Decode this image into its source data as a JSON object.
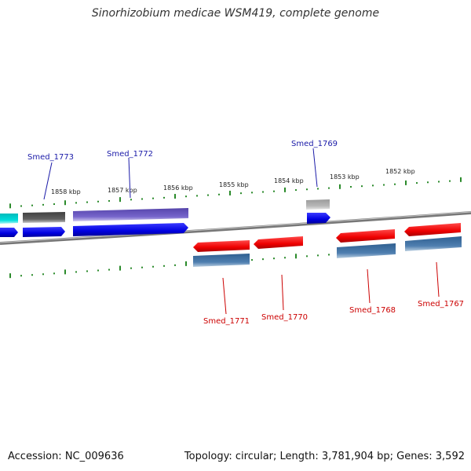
{
  "title": "Sinorhizobium medicae WSM419, complete genome",
  "footer": {
    "accession": "Accession: NC_009636",
    "summary": "Topology: circular; Length: 3,781,904 bp; Genes: 3,592"
  },
  "scale_labels": [
    "1858 kbp",
    "1857 kbp",
    "1856 kbp",
    "1855 kbp",
    "1854 kbp",
    "1853 kbp",
    "1852 kbp"
  ],
  "genes": [
    {
      "label": "Smed_1773",
      "strand": "forward",
      "color": "#1a1aa8"
    },
    {
      "label": "Smed_1772",
      "strand": "forward",
      "color": "#1a1aa8"
    },
    {
      "label": "Smed_1769",
      "strand": "forward",
      "color": "#1a1aa8"
    },
    {
      "label": "Smed_1771",
      "strand": "reverse",
      "color": "#cc0000"
    },
    {
      "label": "Smed_1770",
      "strand": "reverse",
      "color": "#cc0000"
    },
    {
      "label": "Smed_1768",
      "strand": "reverse",
      "color": "#cc0000"
    },
    {
      "label": "Smed_1767",
      "strand": "reverse",
      "color": "#cc0000"
    }
  ],
  "colors": {
    "tick": "#2a8a2a",
    "backbone": "#8a8a8a",
    "cds_forward": "#0000ee",
    "cds_reverse": "#ee0000",
    "gene_reverse": "#4f7fb0",
    "gene_forward": "#606060",
    "gene_long": "#7766cc",
    "cyan_feature": "#00dddd",
    "pale_feature": "#b8b8b8"
  }
}
